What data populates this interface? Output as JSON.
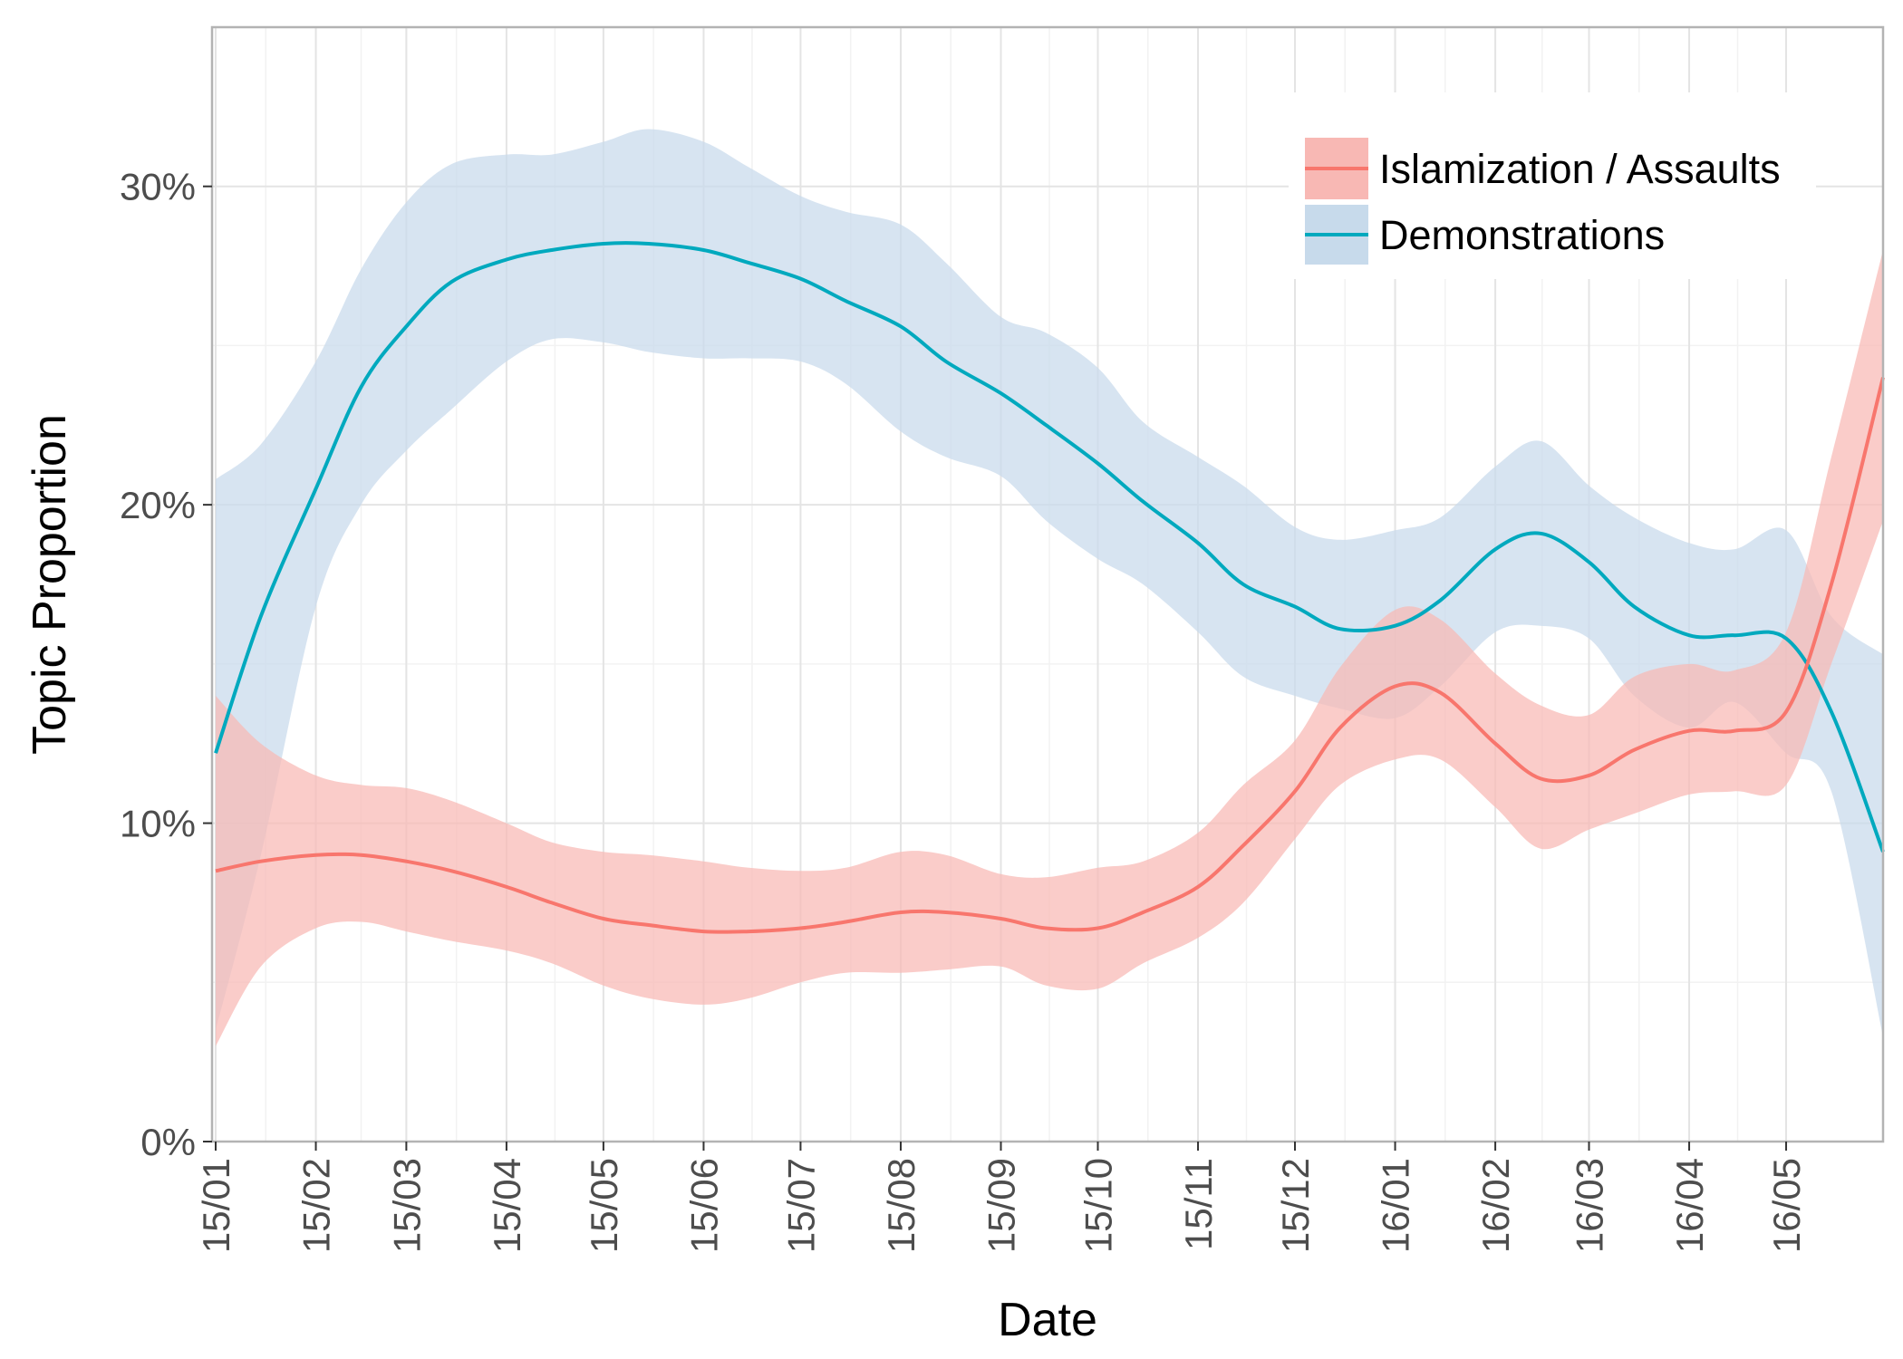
{
  "chart_data": {
    "type": "line",
    "title": "",
    "xlabel": "Date",
    "ylabel": "Topic Proportion",
    "x_ticks": [
      "15/01",
      "15/02",
      "15/03",
      "15/04",
      "15/05",
      "15/06",
      "15/07",
      "15/08",
      "15/09",
      "15/10",
      "15/11",
      "15/12",
      "16/01",
      "16/02",
      "16/03",
      "16/04",
      "16/05"
    ],
    "x_range": [
      "2015-01-01",
      "2016-05-31"
    ],
    "y_ticks": [
      "0%",
      "10%",
      "20%",
      "30%"
    ],
    "ylim": [
      0,
      35
    ],
    "y_unit": "%",
    "grid": true,
    "legend_position": "top-right",
    "series": [
      {
        "name": "Islamization / Assaults",
        "color": "#F8766D",
        "band_color": "#F8B8B4",
        "points": [
          {
            "x": "2015-01-01",
            "y": 8.5,
            "lo": 3.0,
            "hi": 14.0
          },
          {
            "x": "2015-01-15",
            "y": 8.8,
            "lo": 5.5,
            "hi": 12.5
          },
          {
            "x": "2015-02-01",
            "y": 9.0,
            "lo": 6.7,
            "hi": 11.5
          },
          {
            "x": "2015-02-15",
            "y": 9.0,
            "lo": 6.9,
            "hi": 11.2
          },
          {
            "x": "2015-03-01",
            "y": 8.8,
            "lo": 6.6,
            "hi": 11.1
          },
          {
            "x": "2015-03-15",
            "y": 8.5,
            "lo": 6.3,
            "hi": 10.7
          },
          {
            "x": "2015-04-01",
            "y": 8.0,
            "lo": 6.0,
            "hi": 10.0
          },
          {
            "x": "2015-04-15",
            "y": 7.5,
            "lo": 5.6,
            "hi": 9.4
          },
          {
            "x": "2015-05-01",
            "y": 7.0,
            "lo": 4.9,
            "hi": 9.1
          },
          {
            "x": "2015-05-15",
            "y": 6.8,
            "lo": 4.5,
            "hi": 9.0
          },
          {
            "x": "2015-06-01",
            "y": 6.6,
            "lo": 4.3,
            "hi": 8.8
          },
          {
            "x": "2015-06-15",
            "y": 6.6,
            "lo": 4.5,
            "hi": 8.6
          },
          {
            "x": "2015-07-01",
            "y": 6.7,
            "lo": 5.0,
            "hi": 8.5
          },
          {
            "x": "2015-07-15",
            "y": 6.9,
            "lo": 5.3,
            "hi": 8.6
          },
          {
            "x": "2015-08-01",
            "y": 7.2,
            "lo": 5.3,
            "hi": 9.1
          },
          {
            "x": "2015-08-15",
            "y": 7.2,
            "lo": 5.4,
            "hi": 9.0
          },
          {
            "x": "2015-09-01",
            "y": 7.0,
            "lo": 5.5,
            "hi": 8.4
          },
          {
            "x": "2015-09-15",
            "y": 6.7,
            "lo": 4.9,
            "hi": 8.3
          },
          {
            "x": "2015-10-01",
            "y": 6.7,
            "lo": 4.8,
            "hi": 8.6
          },
          {
            "x": "2015-10-15",
            "y": 7.2,
            "lo": 5.6,
            "hi": 8.8
          },
          {
            "x": "2015-11-01",
            "y": 8.0,
            "lo": 6.4,
            "hi": 9.7
          },
          {
            "x": "2015-11-15",
            "y": 9.3,
            "lo": 7.5,
            "hi": 11.2
          },
          {
            "x": "2015-12-01",
            "y": 11.0,
            "lo": 9.5,
            "hi": 12.6
          },
          {
            "x": "2015-12-15",
            "y": 13.0,
            "lo": 11.2,
            "hi": 14.9
          },
          {
            "x": "2016-01-01",
            "y": 14.3,
            "lo": 12.0,
            "hi": 16.7
          },
          {
            "x": "2016-01-15",
            "y": 14.1,
            "lo": 12.0,
            "hi": 16.4
          },
          {
            "x": "2016-02-01",
            "y": 12.5,
            "lo": 10.5,
            "hi": 14.7
          },
          {
            "x": "2016-02-15",
            "y": 11.4,
            "lo": 9.2,
            "hi": 13.7
          },
          {
            "x": "2016-03-01",
            "y": 11.5,
            "lo": 9.8,
            "hi": 13.4
          },
          {
            "x": "2016-03-15",
            "y": 12.3,
            "lo": 10.3,
            "hi": 14.6
          },
          {
            "x": "2016-04-01",
            "y": 12.9,
            "lo": 10.9,
            "hi": 15.0
          },
          {
            "x": "2016-04-15",
            "y": 12.9,
            "lo": 11.0,
            "hi": 14.8
          },
          {
            "x": "2016-05-01",
            "y": 13.5,
            "lo": 11.2,
            "hi": 16.0
          },
          {
            "x": "2016-05-15",
            "y": 17.5,
            "lo": 15.0,
            "hi": 21.5
          },
          {
            "x": "2016-05-31",
            "y": 24.0,
            "lo": 19.5,
            "hi": 28.0
          }
        ]
      },
      {
        "name": "Demonstrations",
        "color": "#00A9BE",
        "band_color": "#C7DAEB",
        "points": [
          {
            "x": "2015-01-01",
            "y": 12.2,
            "lo": 3.5,
            "hi": 20.8
          },
          {
            "x": "2015-01-15",
            "y": 16.5,
            "lo": 9.0,
            "hi": 21.9
          },
          {
            "x": "2015-02-01",
            "y": 20.5,
            "lo": 16.8,
            "hi": 24.5
          },
          {
            "x": "2015-02-15",
            "y": 23.7,
            "lo": 20.0,
            "hi": 27.4
          },
          {
            "x": "2015-03-01",
            "y": 25.6,
            "lo": 21.7,
            "hi": 29.5
          },
          {
            "x": "2015-03-15",
            "y": 27.0,
            "lo": 23.0,
            "hi": 30.7
          },
          {
            "x": "2015-04-01",
            "y": 27.7,
            "lo": 24.5,
            "hi": 31.0
          },
          {
            "x": "2015-04-15",
            "y": 28.0,
            "lo": 25.2,
            "hi": 31.0
          },
          {
            "x": "2015-05-01",
            "y": 28.2,
            "lo": 25.1,
            "hi": 31.4
          },
          {
            "x": "2015-05-15",
            "y": 28.2,
            "lo": 24.8,
            "hi": 31.8
          },
          {
            "x": "2015-06-01",
            "y": 28.0,
            "lo": 24.6,
            "hi": 31.4
          },
          {
            "x": "2015-06-15",
            "y": 27.6,
            "lo": 24.6,
            "hi": 30.6
          },
          {
            "x": "2015-07-01",
            "y": 27.1,
            "lo": 24.5,
            "hi": 29.7
          },
          {
            "x": "2015-07-15",
            "y": 26.4,
            "lo": 23.8,
            "hi": 29.2
          },
          {
            "x": "2015-08-01",
            "y": 25.6,
            "lo": 22.3,
            "hi": 28.8
          },
          {
            "x": "2015-08-15",
            "y": 24.5,
            "lo": 21.5,
            "hi": 27.6
          },
          {
            "x": "2015-09-01",
            "y": 23.5,
            "lo": 20.9,
            "hi": 25.9
          },
          {
            "x": "2015-09-15",
            "y": 22.5,
            "lo": 19.5,
            "hi": 25.4
          },
          {
            "x": "2015-10-01",
            "y": 21.3,
            "lo": 18.3,
            "hi": 24.3
          },
          {
            "x": "2015-10-15",
            "y": 20.1,
            "lo": 17.5,
            "hi": 22.6
          },
          {
            "x": "2015-11-01",
            "y": 18.8,
            "lo": 16.0,
            "hi": 21.5
          },
          {
            "x": "2015-11-15",
            "y": 17.5,
            "lo": 14.6,
            "hi": 20.6
          },
          {
            "x": "2015-12-01",
            "y": 16.8,
            "lo": 14.0,
            "hi": 19.3
          },
          {
            "x": "2015-12-15",
            "y": 16.1,
            "lo": 13.6,
            "hi": 18.9
          },
          {
            "x": "2016-01-01",
            "y": 16.2,
            "lo": 13.3,
            "hi": 19.2
          },
          {
            "x": "2016-01-15",
            "y": 17.0,
            "lo": 14.3,
            "hi": 19.6
          },
          {
            "x": "2016-02-01",
            "y": 18.6,
            "lo": 16.0,
            "hi": 21.2
          },
          {
            "x": "2016-02-15",
            "y": 19.1,
            "lo": 16.2,
            "hi": 22.0
          },
          {
            "x": "2016-03-01",
            "y": 18.2,
            "lo": 15.8,
            "hi": 20.6
          },
          {
            "x": "2016-03-15",
            "y": 16.8,
            "lo": 14.0,
            "hi": 19.6
          },
          {
            "x": "2016-04-01",
            "y": 15.9,
            "lo": 13.0,
            "hi": 18.8
          },
          {
            "x": "2016-04-15",
            "y": 15.9,
            "lo": 13.8,
            "hi": 18.6
          },
          {
            "x": "2016-05-01",
            "y": 15.8,
            "lo": 12.2,
            "hi": 19.2
          },
          {
            "x": "2016-05-15",
            "y": 13.5,
            "lo": 11.0,
            "hi": 16.5
          },
          {
            "x": "2016-05-31",
            "y": 9.1,
            "lo": 3.3,
            "hi": 15.3
          }
        ]
      }
    ]
  }
}
